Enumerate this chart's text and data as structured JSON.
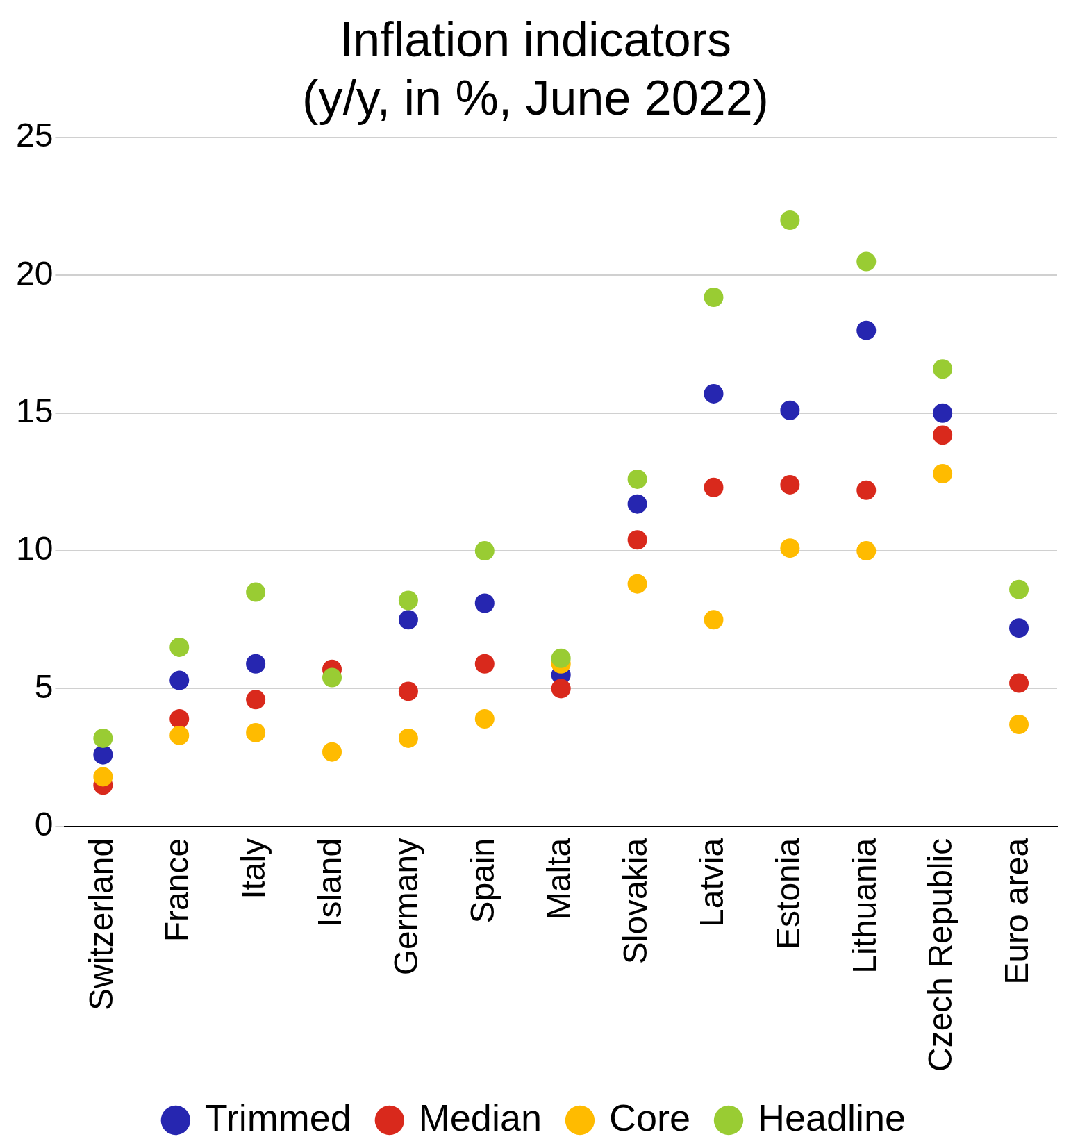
{
  "chart_data": {
    "type": "scatter",
    "title": "Inflation indicators",
    "subtitle": "(y/y, in %, June 2022)",
    "categories": [
      "Switzerland",
      "France",
      "Italy",
      "Island",
      "Germany",
      "Spain",
      "Malta",
      "Slovakia",
      "Latvia",
      "Estonia",
      "Lithuania",
      "Czech Republic",
      "Euro area"
    ],
    "series": [
      {
        "name": "Trimmed",
        "color": "#2626b0",
        "values": [
          2.6,
          5.3,
          5.9,
          null,
          7.5,
          8.1,
          5.5,
          11.7,
          15.7,
          15.1,
          18.0,
          15.0,
          7.2
        ]
      },
      {
        "name": "Median",
        "color": "#d9291c",
        "values": [
          1.5,
          3.9,
          4.6,
          5.7,
          4.9,
          5.9,
          5.0,
          10.4,
          12.3,
          12.4,
          12.2,
          14.2,
          5.2
        ]
      },
      {
        "name": "Core",
        "color": "#ffbb00",
        "values": [
          1.8,
          3.3,
          3.4,
          2.7,
          3.2,
          3.9,
          5.9,
          8.8,
          7.5,
          10.1,
          10.0,
          12.8,
          3.7
        ]
      },
      {
        "name": "Headline",
        "color": "#99cc33",
        "values": [
          3.2,
          6.5,
          8.5,
          5.4,
          8.2,
          10.0,
          6.1,
          12.6,
          19.2,
          22.0,
          20.5,
          16.6,
          8.6
        ]
      }
    ],
    "ylim": [
      0,
      25
    ],
    "yticks": [
      0,
      5,
      10,
      15,
      20,
      25
    ],
    "grid": "y",
    "legend": "bottom",
    "marker": "circle"
  }
}
